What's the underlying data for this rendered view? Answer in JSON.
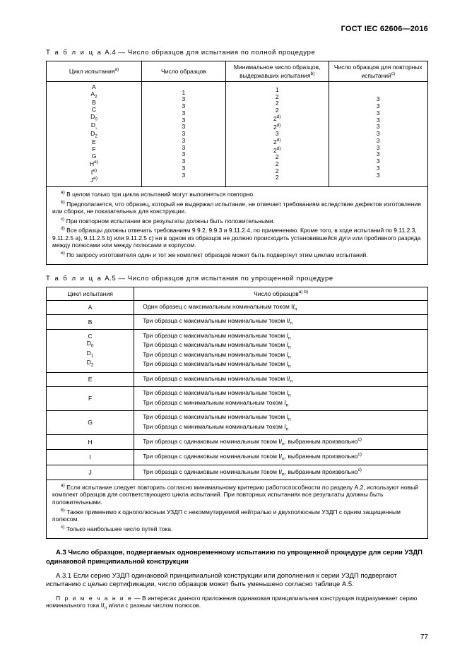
{
  "header": {
    "standard": "ГОСТ IEC 62606—2016"
  },
  "tableA4": {
    "caption_prefix": "Т а б л и ц а",
    "caption_num": "А.4 — ",
    "caption_text": "Число образцов для испытания по полной процедуре",
    "headers": {
      "col1": "Цикл испытания",
      "col1_sup": "a)",
      "col2": "Число образцов",
      "col3": "Минимальное число образцов, выдержавших испытания",
      "col3_sup": "b)",
      "col4": "Число образцов для повторных испытаний",
      "col4_sup": "c)"
    },
    "rows": [
      {
        "c": "A",
        "n": "1",
        "m": "1",
        "r": ""
      },
      {
        "c": "A",
        "csub": "2",
        "n": "3",
        "m": "2",
        "r": "3"
      },
      {
        "c": "B",
        "n": "3",
        "m": "2",
        "r": "3"
      },
      {
        "c": "C",
        "n": "3",
        "m": "2",
        "r": "3"
      },
      {
        "c": "D",
        "csub": "0",
        "n": "3",
        "m": "2",
        "msup": "d)",
        "r": "3"
      },
      {
        "c": "D",
        "csub": "₁",
        "n": "3",
        "m": "2",
        "msup": "d)",
        "r": "3"
      },
      {
        "c": "D",
        "csub": "2",
        "n": "3",
        "m": "3",
        "r": "3"
      },
      {
        "c": "E",
        "n": "3",
        "m": "2",
        "msup": "d)",
        "r": "3"
      },
      {
        "c": "F",
        "n": "3",
        "m": "2",
        "msup": "d)",
        "r": "3"
      },
      {
        "c": "G",
        "n": "3",
        "m": "2",
        "r": "3"
      },
      {
        "c": "H",
        "csup": "e)",
        "n": "3",
        "m": "2",
        "r": "3"
      },
      {
        "c": "I",
        "csup": "e)",
        "n": "3",
        "m": "2",
        "r": "3"
      },
      {
        "c": "J",
        "csup": "e)",
        "n": "3",
        "m": "2",
        "r": "3"
      }
    ],
    "footnotes": {
      "a": "В целом только три цикла испытаний могут выполняться повторно.",
      "b": "Предполагается, что образец, который не выдержал испытание, не отвечает требованиям вследствие дефектов изготовления или сборки, не показательных для конструкции.",
      "c": "При повторном испытании все результаты должны быть положительными.",
      "d": "Все образцы должны отвечать требованиям 9.9.2, 9.9.3 и 9.11.2.4, по применению. Кроме того, в ходе испытаний по 9.11.2.3, 9.11.2.5 а), 9.11.2.5 b) или 9.11.2.5 с) ни в одном из образцов не должно происходить установившейся дуги или пробивного разряда между полюсами или между полюсами и корпусом.",
      "e": "По запросу изготовителя один и тот же комплект образцов может быть подвергнут этим циклам испытаний."
    }
  },
  "tableA5": {
    "caption_prefix": "Т а б л и ц а",
    "caption_num": "А.5 — ",
    "caption_text": "Число образцов для испытания по упрощенной процедуре",
    "headers": {
      "col1": "Цикл испытания",
      "col2": "Число образцов",
      "col2_sup": "a) b)"
    },
    "rows": [
      {
        "c": "A",
        "d": "Один образец с максимальным номинальным током I",
        "dsub": "n"
      },
      {
        "c": "B",
        "d": "Три образца с максимальным номинальным током I",
        "dsub": "n"
      },
      {
        "group": [
          "C",
          "D<sub>0</sub>",
          "D<sub>1</sub>",
          "D<sub>2</sub>"
        ],
        "lines": [
          "Три образца с максимальным номинальным током I<sub>n</sub>",
          "Три образца с максимальным номинальным током I<sub>n</sub>",
          "Три образца с максимальным номинальным током I<sub>n</sub>",
          "Три образца с максимальным номинальным током I<sub>n</sub>"
        ]
      },
      {
        "c": "E",
        "d": "Три образца с максимальным номинальным током I",
        "dsub": "n"
      },
      {
        "c": "F",
        "lines": [
          "Три образца с максимальным номинальным током I<sub>n</sub>",
          "Три образца с минимальным номинальным током I<sub>n</sub>"
        ]
      },
      {
        "c": "G",
        "lines": [
          "Три образца с максимальным номинальным током I<sub>n</sub>",
          "Три образца с минимальным номинальным током I<sub>n</sub>"
        ]
      },
      {
        "c": "H",
        "d": "Три образца с одинаковым номинальным током I",
        "dsub": "n",
        "tail": ", выбранным произвольно",
        "tsup": "c)"
      },
      {
        "c": "I",
        "d": "Три образца с одинаковым номинальным током I",
        "dsub": "n",
        "tail": ", выбранным произвольно",
        "tsup": "c)"
      },
      {
        "c": "J",
        "d": "Три образца с одинаковым номинальным током I",
        "dsub": "n",
        "tail": ", выбранным произвольно",
        "tsup": "c)"
      }
    ],
    "footnotes": {
      "a": "Если испытание следует повторить согласно минимальному критерию работоспособности по разделу А.2, используют новый комплект образцов для соответствующего цикла испытаний. При повторных испытаниях все результаты должны быть положительными.",
      "b": "Также применимо к однополюсным УЗДП с некоммутируемой нейтралью и двухполюсным УЗДП с одним защищенным полюсом.",
      "c": "Только наибольшее число путей тока."
    }
  },
  "sectionA3": {
    "title": "А.3 Число образцов, подвергаемых одновременному испытанию по упрощенной процедуре для серии УЗДП одинаковой принципиальной конструкции",
    "para": "А.3.1 Если серию УЗДП одинаковой принципиальной конструкции или дополнения к серии УЗДП подвергают испытанию с целью сертификации, число образцов может быть уменьшено согласно таблице А.5.",
    "note_prefix": "П р и м е ч а н и е",
    "note_text": " — В интересах данного приложения одинаковая принципиальная конструкция подразумевает серию номинального тока I",
    "note_sub": "n",
    "note_tail": " и/или с разным числом полюсов."
  },
  "pageNumber": "77"
}
